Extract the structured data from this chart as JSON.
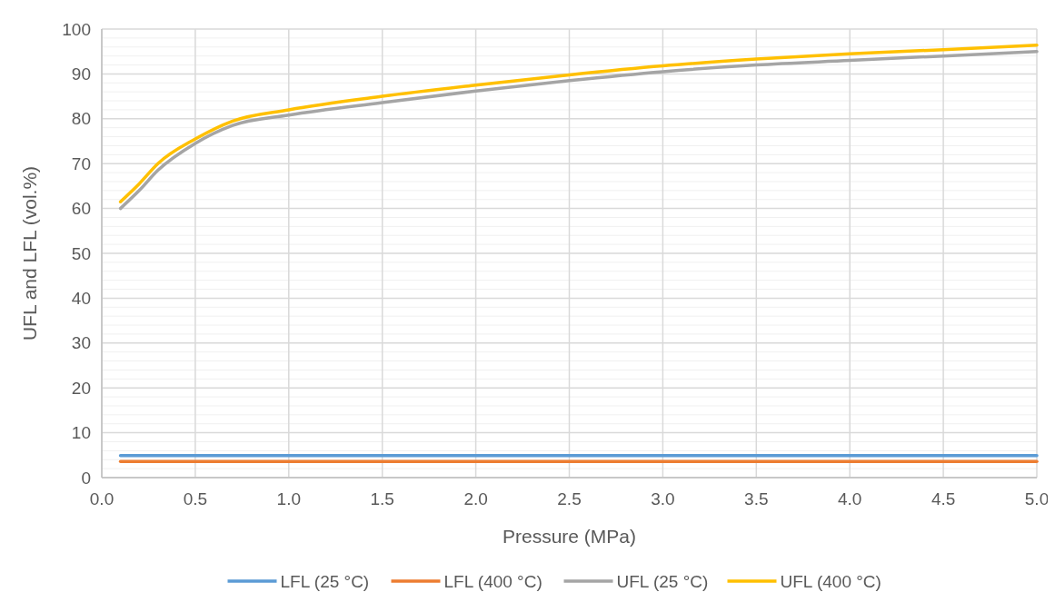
{
  "chart_data": {
    "type": "line",
    "xlabel": "Pressure (MPa)",
    "ylabel": "UFL and LFL (vol.%)",
    "xlim": [
      0,
      5
    ],
    "xticks": [
      {
        "value": 0,
        "label": "0.0"
      },
      {
        "value": 0.5,
        "label": "0.5"
      },
      {
        "value": 1,
        "label": "1.0"
      },
      {
        "value": 1.5,
        "label": "1.5"
      },
      {
        "value": 2,
        "label": "2.0"
      },
      {
        "value": 2.5,
        "label": "2.5"
      },
      {
        "value": 3,
        "label": "3.0"
      },
      {
        "value": 3.5,
        "label": "3.5"
      },
      {
        "value": 4,
        "label": "4.0"
      },
      {
        "value": 4.5,
        "label": "4.5"
      },
      {
        "value": 5,
        "label": "5.0"
      }
    ],
    "ylim": [
      0,
      100
    ],
    "yticks": [
      0,
      {
        "value": 2,
        "label": null
      },
      {
        "value": 4,
        "label": null
      },
      {
        "value": 6,
        "label": null
      },
      {
        "value": 8,
        "label": null
      },
      10,
      {
        "value": 12,
        "label": null
      },
      {
        "value": 14,
        "label": null
      },
      {
        "value": 16,
        "label": null
      },
      {
        "value": 18,
        "label": null
      },
      20,
      {
        "value": 22,
        "label": null
      },
      {
        "value": 24,
        "label": null
      },
      {
        "value": 26,
        "label": null
      },
      {
        "value": 28,
        "label": null
      },
      30,
      {
        "value": 32,
        "label": null
      },
      {
        "value": 34,
        "label": null
      },
      {
        "value": 36,
        "label": null
      },
      {
        "value": 38,
        "label": null
      },
      40,
      {
        "value": 42,
        "label": null
      },
      {
        "value": 44,
        "label": null
      },
      {
        "value": 46,
        "label": null
      },
      {
        "value": 48,
        "label": null
      },
      50,
      {
        "value": 52,
        "label": null
      },
      {
        "value": 54,
        "label": null
      },
      {
        "value": 56,
        "label": null
      },
      {
        "value": 58,
        "label": null
      },
      60,
      {
        "value": 62,
        "label": null
      },
      {
        "value": 64,
        "label": null
      },
      {
        "value": 66,
        "label": null
      },
      {
        "value": 68,
        "label": null
      },
      70,
      {
        "value": 72,
        "label": null
      },
      {
        "value": 74,
        "label": null
      },
      {
        "value": 76,
        "label": null
      },
      {
        "value": 78,
        "label": null
      },
      80,
      {
        "value": 82,
        "label": null
      },
      {
        "value": 84,
        "label": null
      },
      {
        "value": 86,
        "label": null
      },
      {
        "value": 88,
        "label": null
      },
      90,
      {
        "value": 92,
        "label": null
      },
      {
        "value": 94,
        "label": null
      },
      {
        "value": 96,
        "label": null
      },
      {
        "value": 98,
        "label": null
      },
      100
    ],
    "grid": true,
    "legend": "bottom",
    "marker": "none",
    "line_style": "solid",
    "x": [
      0.1,
      0.2,
      0.3,
      0.5,
      0.7,
      1.0,
      1.5,
      2.0,
      2.5,
      3.0,
      3.5,
      4.0,
      4.5,
      5.0
    ],
    "series": [
      {
        "name": "LFL (25 °C)",
        "color": "#5b9bd5",
        "values": [
          4.9,
          4.9,
          4.9,
          4.9,
          4.9,
          4.9,
          4.9,
          4.9,
          4.9,
          4.9,
          4.9,
          4.9,
          4.9,
          4.9
        ]
      },
      {
        "name": "LFL (400 °C)",
        "color": "#ed7d31",
        "values": [
          3.6,
          3.6,
          3.6,
          3.6,
          3.6,
          3.6,
          3.6,
          3.6,
          3.6,
          3.6,
          3.6,
          3.6,
          3.6,
          3.6
        ]
      },
      {
        "name": "UFL (25 °C)",
        "color": "#a5a5a5",
        "values": [
          60,
          64,
          68.5,
          74.5,
          78.5,
          80.8,
          83.6,
          86.2,
          88.5,
          90.5,
          92,
          93,
          94,
          95
        ]
      },
      {
        "name": "UFL (400 °C)",
        "color": "#ffc000",
        "values": [
          61.5,
          65.5,
          70,
          75.5,
          79.5,
          82,
          85,
          87.5,
          89.8,
          91.8,
          93.3,
          94.5,
          95.4,
          96.4
        ]
      }
    ]
  }
}
